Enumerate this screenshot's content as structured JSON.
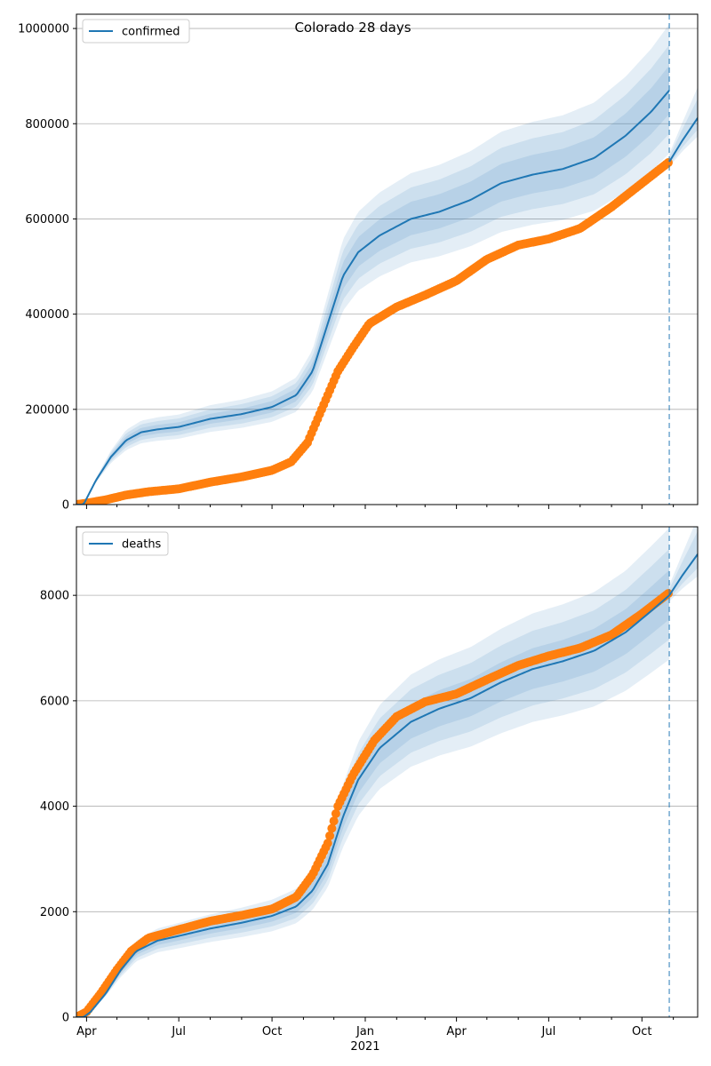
{
  "figure_title": "Colorado 28 days",
  "colors": {
    "model": "#1f77b4",
    "observed": "#ff7f0e",
    "forecast_line": "#1f77b4"
  },
  "x_axis": {
    "ticks": [
      {
        "date": "2020-04-01",
        "label": "Apr"
      },
      {
        "date": "2020-07-01",
        "label": "Jul"
      },
      {
        "date": "2020-10-01",
        "label": "Oct"
      },
      {
        "date": "2021-01-01",
        "label": "Jan"
      },
      {
        "date": "2021-04-01",
        "label": "Apr"
      },
      {
        "date": "2021-07-01",
        "label": "Jul"
      },
      {
        "date": "2021-10-01",
        "label": "Oct"
      }
    ],
    "year_label": "2021",
    "range": [
      "2020-03-22",
      "2021-11-25"
    ]
  },
  "forecast_date": "2021-10-28",
  "chart_data": [
    {
      "type": "line",
      "name": "confirmed",
      "legend": "confirmed",
      "legend_position": "top-left",
      "grid": "horizontal",
      "ylim": [
        0,
        1030000
      ],
      "yticks": [
        0,
        200000,
        400000,
        600000,
        800000,
        1000000
      ],
      "ytick_labels": [
        "0",
        "200000",
        "400000",
        "600000",
        "800000",
        "1000000"
      ],
      "model": [
        [
          "2020-03-22",
          0
        ],
        [
          "2020-03-29",
          0
        ],
        [
          "2020-04-10",
          50000
        ],
        [
          "2020-04-25",
          100000
        ],
        [
          "2020-05-10",
          135000
        ],
        [
          "2020-05-25",
          152000
        ],
        [
          "2020-06-10",
          158000
        ],
        [
          "2020-07-01",
          163000
        ],
        [
          "2020-08-01",
          180000
        ],
        [
          "2020-09-01",
          190000
        ],
        [
          "2020-10-01",
          205000
        ],
        [
          "2020-10-25",
          230000
        ],
        [
          "2020-11-10",
          280000
        ],
        [
          "2020-11-25",
          380000
        ],
        [
          "2020-12-10",
          480000
        ],
        [
          "2020-12-25",
          530000
        ],
        [
          "2021-01-15",
          565000
        ],
        [
          "2021-02-15",
          600000
        ],
        [
          "2021-03-15",
          615000
        ],
        [
          "2021-04-15",
          640000
        ],
        [
          "2021-05-15",
          675000
        ],
        [
          "2021-06-15",
          693000
        ],
        [
          "2021-07-15",
          705000
        ],
        [
          "2021-08-15",
          728000
        ],
        [
          "2021-09-15",
          775000
        ],
        [
          "2021-10-10",
          825000
        ],
        [
          "2021-10-28",
          870000
        ]
      ],
      "forecast": [
        [
          "2021-10-28",
          720000
        ],
        [
          "2021-11-10",
          765000
        ],
        [
          "2021-11-25",
          812000
        ]
      ],
      "observed": [
        [
          "2020-03-22",
          0
        ],
        [
          "2020-04-01",
          3000
        ],
        [
          "2020-04-20",
          10000
        ],
        [
          "2020-05-10",
          20000
        ],
        [
          "2020-06-01",
          27000
        ],
        [
          "2020-07-01",
          33000
        ],
        [
          "2020-08-01",
          47000
        ],
        [
          "2020-09-01",
          58000
        ],
        [
          "2020-10-01",
          72000
        ],
        [
          "2020-10-20",
          90000
        ],
        [
          "2020-11-05",
          130000
        ],
        [
          "2020-11-15",
          180000
        ],
        [
          "2020-11-25",
          230000
        ],
        [
          "2020-12-05",
          280000
        ],
        [
          "2020-12-20",
          330000
        ],
        [
          "2021-01-05",
          380000
        ],
        [
          "2021-02-01",
          415000
        ],
        [
          "2021-03-01",
          440000
        ],
        [
          "2021-04-01",
          470000
        ],
        [
          "2021-05-01",
          515000
        ],
        [
          "2021-06-01",
          545000
        ],
        [
          "2021-07-01",
          558000
        ],
        [
          "2021-08-01",
          580000
        ],
        [
          "2021-09-01",
          625000
        ],
        [
          "2021-10-01",
          675000
        ],
        [
          "2021-10-28",
          720000
        ]
      ]
    },
    {
      "type": "line",
      "name": "deaths",
      "legend": "deaths",
      "legend_position": "top-left",
      "grid": "horizontal",
      "ylim": [
        0,
        9300
      ],
      "yticks": [
        0,
        2000,
        4000,
        6000,
        8000
      ],
      "ytick_labels": [
        "0",
        "2000",
        "4000",
        "6000",
        "8000"
      ],
      "model": [
        [
          "2020-03-22",
          0
        ],
        [
          "2020-03-29",
          0
        ],
        [
          "2020-04-05",
          100
        ],
        [
          "2020-04-20",
          450
        ],
        [
          "2020-05-05",
          900
        ],
        [
          "2020-05-20",
          1250
        ],
        [
          "2020-06-10",
          1450
        ],
        [
          "2020-07-01",
          1540
        ],
        [
          "2020-08-01",
          1680
        ],
        [
          "2020-09-01",
          1790
        ],
        [
          "2020-10-01",
          1920
        ],
        [
          "2020-10-25",
          2100
        ],
        [
          "2020-11-10",
          2400
        ],
        [
          "2020-11-25",
          2900
        ],
        [
          "2020-12-10",
          3800
        ],
        [
          "2020-12-25",
          4500
        ],
        [
          "2021-01-15",
          5100
        ],
        [
          "2021-02-15",
          5600
        ],
        [
          "2021-03-15",
          5850
        ],
        [
          "2021-04-15",
          6050
        ],
        [
          "2021-05-15",
          6350
        ],
        [
          "2021-06-15",
          6600
        ],
        [
          "2021-07-15",
          6750
        ],
        [
          "2021-08-15",
          6950
        ],
        [
          "2021-09-15",
          7300
        ],
        [
          "2021-10-10",
          7700
        ],
        [
          "2021-10-28",
          8000
        ]
      ],
      "forecast": [
        [
          "2021-10-28",
          8000
        ],
        [
          "2021-11-10",
          8380
        ],
        [
          "2021-11-25",
          8780
        ]
      ],
      "observed": [
        [
          "2020-03-22",
          0
        ],
        [
          "2020-04-01",
          100
        ],
        [
          "2020-04-15",
          450
        ],
        [
          "2020-05-01",
          900
        ],
        [
          "2020-05-15",
          1250
        ],
        [
          "2020-06-01",
          1500
        ],
        [
          "2020-07-01",
          1660
        ],
        [
          "2020-08-01",
          1820
        ],
        [
          "2020-09-01",
          1930
        ],
        [
          "2020-10-01",
          2050
        ],
        [
          "2020-10-25",
          2280
        ],
        [
          "2020-11-10",
          2700
        ],
        [
          "2020-11-25",
          3300
        ],
        [
          "2020-12-05",
          4000
        ],
        [
          "2020-12-20",
          4600
        ],
        [
          "2021-01-10",
          5250
        ],
        [
          "2021-02-01",
          5700
        ],
        [
          "2021-03-01",
          5980
        ],
        [
          "2021-04-01",
          6130
        ],
        [
          "2021-05-01",
          6400
        ],
        [
          "2021-06-01",
          6670
        ],
        [
          "2021-07-01",
          6850
        ],
        [
          "2021-08-01",
          7000
        ],
        [
          "2021-09-01",
          7250
        ],
        [
          "2021-10-01",
          7650
        ],
        [
          "2021-10-28",
          8050
        ]
      ]
    }
  ]
}
